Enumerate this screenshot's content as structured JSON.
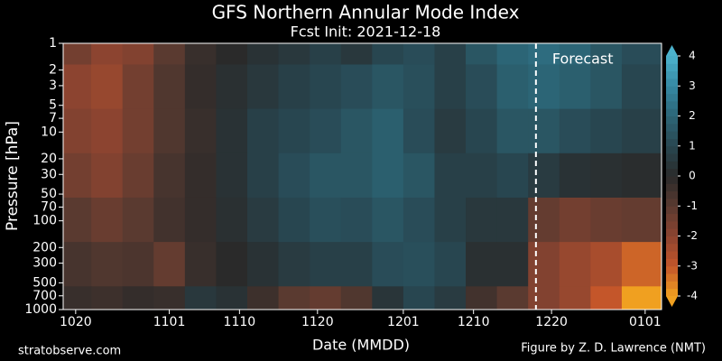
{
  "chart_data": {
    "type": "contour",
    "title": "GFS Northern Annular Mode Index",
    "subtitle": "Fcst Init: 2021-12-18",
    "x_label": "Date (MMDD)",
    "y_label": "Pressure [hPa]",
    "annotation": "Forecast",
    "forecast_x": 59,
    "footer_left": "stratobserve.com",
    "footer_right": "Figure by Z. D. Lawrence (NMT)",
    "x": [
      0,
      4,
      8,
      12,
      16,
      20,
      24,
      28,
      32,
      36,
      40,
      44,
      48,
      52,
      56,
      60,
      64,
      68,
      72
    ],
    "levels": [
      1,
      3,
      10,
      30,
      100,
      300,
      1000
    ],
    "values": [
      [
        -1.5,
        -2,
        -1.8,
        -1,
        -0.3,
        0,
        0.3,
        0.5,
        0.8,
        0.5,
        1,
        1.2,
        0.8,
        1.5,
        2,
        2.2,
        2,
        1.5,
        1.2
      ],
      [
        -2,
        -2.2,
        -1.5,
        -0.8,
        -0.2,
        0.2,
        0.5,
        0.8,
        1,
        1.2,
        1.5,
        1.3,
        0.8,
        1.2,
        1.8,
        2,
        1.8,
        1.5,
        1
      ],
      [
        -1.8,
        -2,
        -1.5,
        -0.8,
        -0.3,
        0.3,
        0.8,
        1,
        1.2,
        1.5,
        1.8,
        1.2,
        0.6,
        1,
        1.5,
        1.5,
        1.2,
        1,
        0.8
      ],
      [
        -1.5,
        -1.8,
        -1.3,
        -0.6,
        -0.2,
        0.3,
        0.8,
        1.2,
        1.5,
        1.5,
        1.8,
        1.5,
        0.8,
        0.8,
        1,
        0.6,
        0.3,
        0.2,
        0.1
      ],
      [
        -1,
        -1.3,
        -1,
        -0.5,
        -0.2,
        0.2,
        0.6,
        1,
        1.3,
        1.2,
        1.5,
        1.2,
        0.8,
        0.5,
        0.5,
        -1.2,
        -1.5,
        -1.3,
        -1.2
      ],
      [
        -0.6,
        -0.8,
        -0.7,
        -1.2,
        -0.3,
        0,
        0.3,
        0.6,
        0.8,
        0.8,
        1.2,
        1.3,
        1,
        0.2,
        0.2,
        -1.8,
        -2.2,
        -2.5,
        -3.2
      ],
      [
        -0.3,
        -0.4,
        -0.2,
        -0.3,
        0.5,
        0.3,
        -0.4,
        -1,
        -1.2,
        -0.8,
        0.4,
        1,
        0.6,
        -0.5,
        -1,
        -1.8,
        -2.2,
        -3,
        -4.5
      ]
    ],
    "xlim": [
      -1.6,
      75.1
    ],
    "xticks": [
      {
        "value": 0,
        "label": "1020"
      },
      {
        "value": 12,
        "label": "1101"
      },
      {
        "value": 21,
        "label": "1110"
      },
      {
        "value": 31,
        "label": "1120"
      },
      {
        "value": 42,
        "label": "1201"
      },
      {
        "value": 51,
        "label": "1210"
      },
      {
        "value": 61,
        "label": "1220"
      },
      {
        "value": 73,
        "label": "0101"
      }
    ],
    "ylim": [
      1000,
      1
    ],
    "y_log": true,
    "yticks": [
      1,
      2,
      3,
      5,
      7,
      10,
      20,
      30,
      50,
      70,
      100,
      200,
      300,
      500,
      700,
      1000
    ],
    "colorbar": {
      "ticks": [
        -4,
        -3,
        -2,
        -1,
        0,
        1,
        2,
        3,
        4
      ],
      "colors": [
        "#f0a020",
        "#c4562a",
        "#8c4430",
        "#5a3a30",
        "#2a2a2a",
        "#284650",
        "#2c6576",
        "#3588a2",
        "#4cb2cc"
      ]
    }
  }
}
